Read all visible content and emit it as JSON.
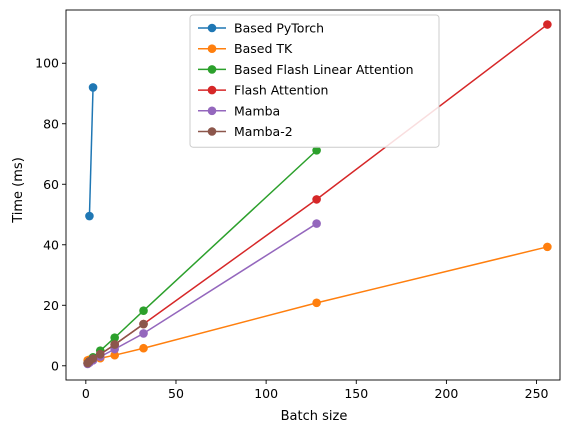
{
  "chart_data": {
    "type": "line",
    "title": "",
    "xlabel": "Batch size",
    "ylabel": "Time (ms)",
    "xlim": [
      -11,
      263
    ],
    "ylim": [
      -4.7,
      117.6
    ],
    "xticks": [
      0,
      50,
      100,
      150,
      200,
      250
    ],
    "yticks": [
      0,
      20,
      40,
      60,
      80,
      100
    ],
    "grid": false,
    "legend_position": "top-center",
    "series": [
      {
        "name": "Based PyTorch",
        "color": "#1f77b4",
        "x": [
          2,
          4
        ],
        "y": [
          49.5,
          92
        ]
      },
      {
        "name": "Based TK",
        "color": "#ff7f0e",
        "x": [
          1,
          2,
          4,
          8,
          16,
          32,
          128,
          256
        ],
        "y": [
          1.8,
          2.0,
          2.2,
          2.5,
          3.5,
          5.8,
          20.8,
          39.3
        ]
      },
      {
        "name": "Based Flash Linear Attention",
        "color": "#2ca02c",
        "x": [
          1,
          2,
          4,
          8,
          16,
          32,
          128
        ],
        "y": [
          0.8,
          1.5,
          2.8,
          5.0,
          9.3,
          18.2,
          71.2
        ]
      },
      {
        "name": "Flash Attention",
        "color": "#d62728",
        "x": [
          1,
          2,
          4,
          8,
          16,
          32,
          128,
          256
        ],
        "y": [
          0.8,
          1.2,
          2.2,
          3.8,
          7.0,
          13.8,
          55.0,
          112.8
        ]
      },
      {
        "name": "Mamba",
        "color": "#9467bd",
        "x": [
          1,
          2,
          4,
          8,
          16,
          32,
          128
        ],
        "y": [
          0.6,
          1.0,
          1.8,
          3.0,
          5.5,
          10.7,
          47.0
        ]
      },
      {
        "name": "Mamba-2",
        "color": "#8c564b",
        "x": [
          1,
          2,
          4,
          8,
          16,
          32
        ],
        "y": [
          0.9,
          1.5,
          2.4,
          3.8,
          7.0,
          13.8
        ]
      }
    ]
  }
}
